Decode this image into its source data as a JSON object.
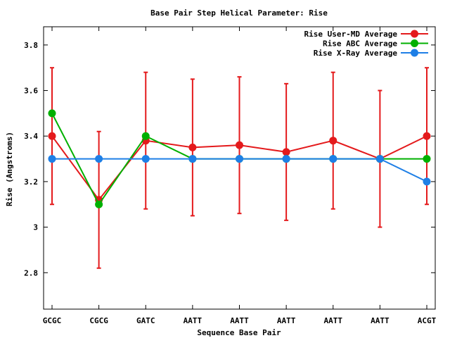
{
  "chart_data": {
    "type": "line",
    "title": "Base Pair Step Helical Parameter: Rise",
    "xlabel": "Sequence Base Pair",
    "ylabel": "Rise (Angstroms)",
    "categories": [
      "GCGC",
      "CGCG",
      "GATC",
      "AATT",
      "AATT",
      "AATT",
      "AATT",
      "AATT",
      "ACGT"
    ],
    "ylim": [
      2.64,
      3.88
    ],
    "yticks": [
      2.8,
      3,
      3.2,
      3.4,
      3.6,
      3.8
    ],
    "ytick_labels": [
      "2.8",
      "3",
      "3.2",
      "3.4",
      "3.6",
      "3.8"
    ],
    "grid": false,
    "legend_position": "top-right",
    "series": [
      {
        "name": "Rise User-MD Average",
        "color": "#e41a1c",
        "values": [
          3.4,
          3.12,
          3.38,
          3.35,
          3.36,
          3.33,
          3.38,
          3.3,
          3.4
        ],
        "error_low": [
          3.1,
          2.82,
          3.08,
          3.05,
          3.06,
          3.03,
          3.08,
          3.0,
          3.1
        ],
        "error_high": [
          3.7,
          3.42,
          3.68,
          3.65,
          3.66,
          3.63,
          3.68,
          3.6,
          3.7
        ]
      },
      {
        "name": "Rise ABC Average",
        "color": "#00b000",
        "values": [
          3.5,
          3.1,
          3.4,
          3.3,
          3.3,
          3.3,
          3.3,
          3.3,
          3.3
        ]
      },
      {
        "name": "Rise X-Ray Average",
        "color": "#1e7fe6",
        "values": [
          3.3,
          3.3,
          3.3,
          3.3,
          3.3,
          3.3,
          3.3,
          3.3,
          3.2
        ]
      }
    ]
  }
}
